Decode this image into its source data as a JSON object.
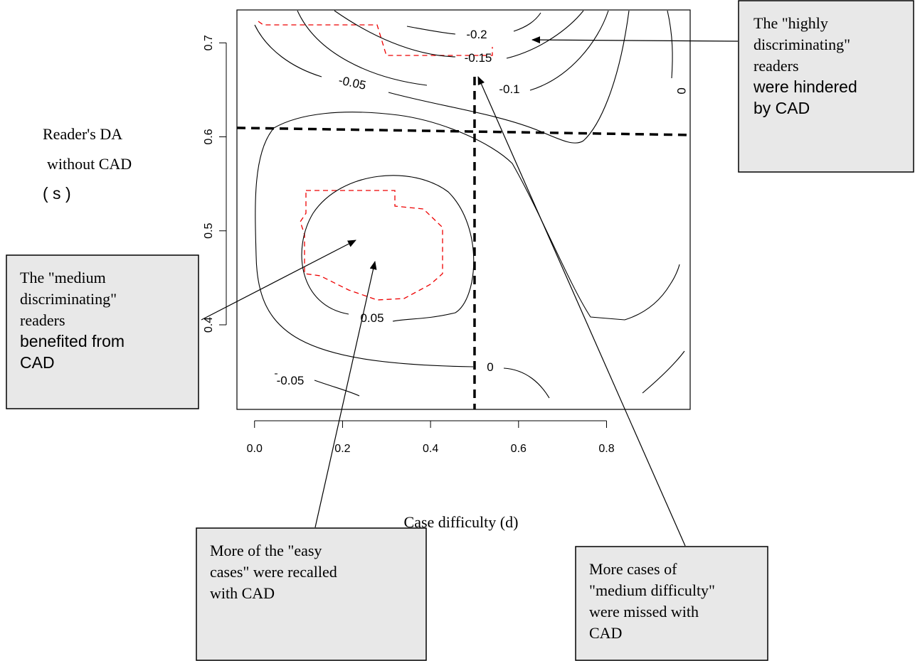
{
  "chart_data": {
    "type": "contour",
    "x_label": "Case difficulty (d)",
    "y_label": [
      "Reader's DA",
      "without CAD",
      "( s )"
    ],
    "xlim": [
      -0.04,
      0.99
    ],
    "ylim": [
      0.31,
      0.735
    ],
    "xticks": [
      {
        "value": 0,
        "label": "0.0"
      },
      0.2,
      0.4,
      0.6,
      0.8
    ],
    "yticks": [
      0.4,
      0.5,
      0.6,
      0.7
    ],
    "contour_labels": [
      -0.2,
      -0.15,
      -0.1,
      -0.05,
      0,
      0,
      0.05,
      -0.05
    ],
    "reference_lines": {
      "x": 0.5,
      "y": 0.605
    }
  },
  "annotations": [
    {
      "lines": [
        "The \"highly",
        "discriminating\"",
        "readers",
        "were hindered",
        "by CAD"
      ]
    },
    {
      "lines": [
        "The \"medium",
        "discriminating\"",
        "readers",
        "benefited from",
        "CAD"
      ]
    },
    {
      "lines": [
        "More of the \"easy",
        "cases\" were recalled",
        "with CAD"
      ]
    },
    {
      "lines": [
        "More cases of",
        "\"medium difficulty\"",
        "were missed with",
        "CAD"
      ]
    }
  ]
}
